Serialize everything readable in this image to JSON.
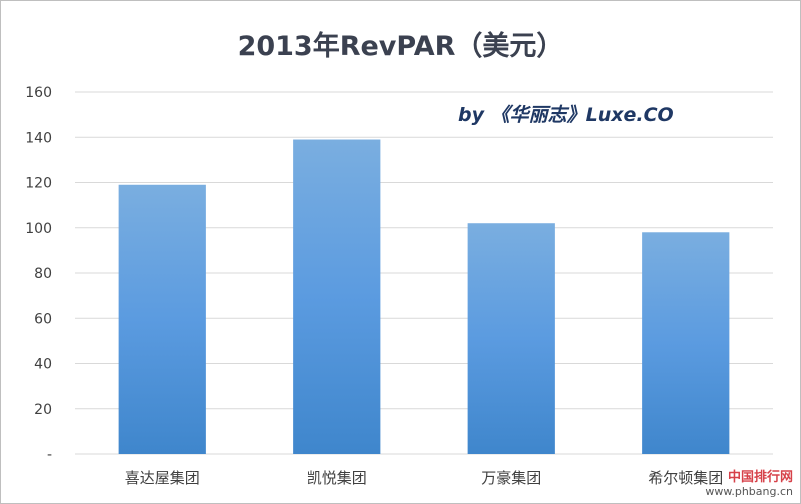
{
  "chart_data": {
    "type": "bar",
    "title": "2013年RevPAR（美元）",
    "annotation": "by 《华丽志》Luxe.CO",
    "categories": [
      "喜达屋集团",
      "凯悦集团",
      "万豪集团",
      "希尔顿集团"
    ],
    "values": [
      119,
      139,
      102,
      98
    ],
    "ylim": [
      0,
      160
    ],
    "yticks": [
      0,
      20,
      40,
      60,
      80,
      100,
      120,
      140,
      160
    ],
    "ytick_labels": [
      "-",
      "20",
      "40",
      "60",
      "80",
      "100",
      "120",
      "140",
      "160"
    ],
    "xlabel": "",
    "ylabel": "",
    "grid": true,
    "legend": "none",
    "bar_color_top": "#7aaee0",
    "bar_color_mid": "#5b9be0",
    "bar_color_bottom": "#3f86cc",
    "grid_color": "#d9d9d9",
    "text_color": "#404040"
  },
  "watermark": {
    "name": "中国排行网",
    "url": "www.phbang.cn"
  }
}
